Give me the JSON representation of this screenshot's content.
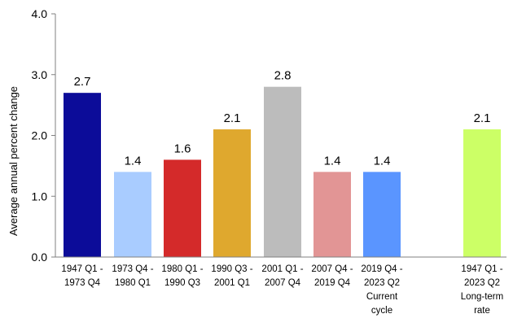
{
  "chart_data": {
    "type": "bar",
    "title": "",
    "xlabel": "",
    "ylabel": "Average annual percent change",
    "ylim": [
      0,
      4
    ],
    "yticks": [
      "0.0",
      "1.0",
      "2.0",
      "3.0",
      "4.0"
    ],
    "grid": false,
    "legend": "none",
    "categories": [
      [
        "1947 Q1 -",
        "1973 Q4"
      ],
      [
        "1973 Q4 -",
        "1980 Q1"
      ],
      [
        "1980 Q1 -",
        "1990 Q3"
      ],
      [
        "1990 Q3 -",
        "2001 Q1"
      ],
      [
        "2001 Q1 -",
        "2007 Q4"
      ],
      [
        "2007 Q4 -",
        "2019 Q4"
      ],
      [
        "2019 Q4 -",
        "2023 Q2",
        "Current",
        "cycle"
      ],
      [
        "1947 Q1 -",
        "2023 Q2",
        "Long-term",
        "rate"
      ]
    ],
    "values": [
      2.7,
      1.4,
      1.6,
      2.1,
      2.8,
      1.4,
      1.4,
      2.1
    ],
    "value_labels": [
      "2.7",
      "1.4",
      "1.6",
      "2.1",
      "2.8",
      "1.4",
      "1.4",
      "2.1"
    ],
    "colors": [
      "#0c0c99",
      "#a9ccff",
      "#d42a2a",
      "#dfa82e",
      "#bcbcbc",
      "#e29595",
      "#5a95ff",
      "#ccff66"
    ]
  }
}
